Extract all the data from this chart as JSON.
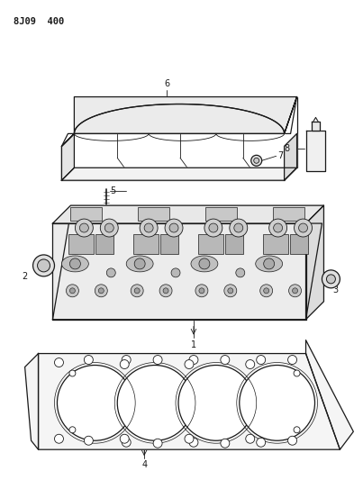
{
  "title": "8J09  400",
  "bg_color": "#ffffff",
  "line_color": "#1a1a1a",
  "fig_width": 4.03,
  "fig_height": 5.33,
  "dpi": 100
}
